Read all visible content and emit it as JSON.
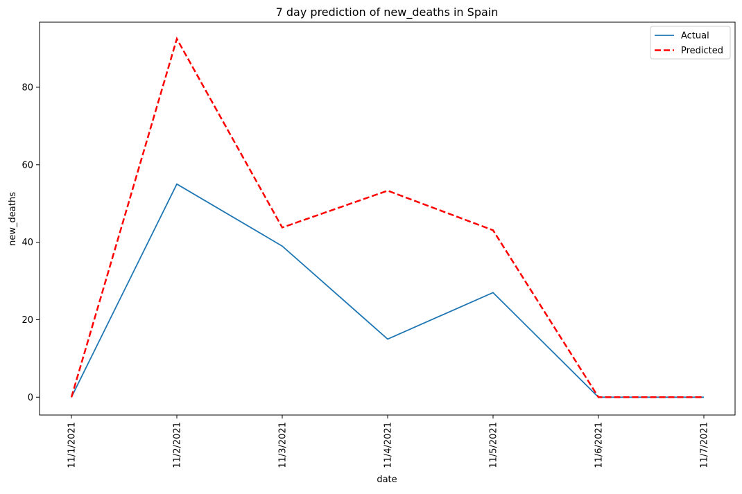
{
  "chart_data": {
    "type": "line",
    "title": "7 day prediction of new_deaths in Spain",
    "xlabel": "date",
    "ylabel": "new_deaths",
    "categories": [
      "11/1/2021",
      "11/2/2021",
      "11/3/2021",
      "11/4/2021",
      "11/5/2021",
      "11/6/2021",
      "11/7/2021"
    ],
    "ylim": [
      -4.6,
      96.8
    ],
    "yticks": [
      0,
      20,
      40,
      60,
      80
    ],
    "grid": false,
    "legend_position": "top-right",
    "series": [
      {
        "name": "Actual",
        "values": [
          0,
          55,
          39,
          15,
          27,
          0,
          0
        ],
        "color": "#1f77b4",
        "style": "solid"
      },
      {
        "name": "Predicted",
        "values": [
          0,
          92.5,
          43.8,
          53.3,
          43.1,
          0,
          0
        ],
        "color": "#ff0000",
        "style": "dashed"
      }
    ]
  }
}
